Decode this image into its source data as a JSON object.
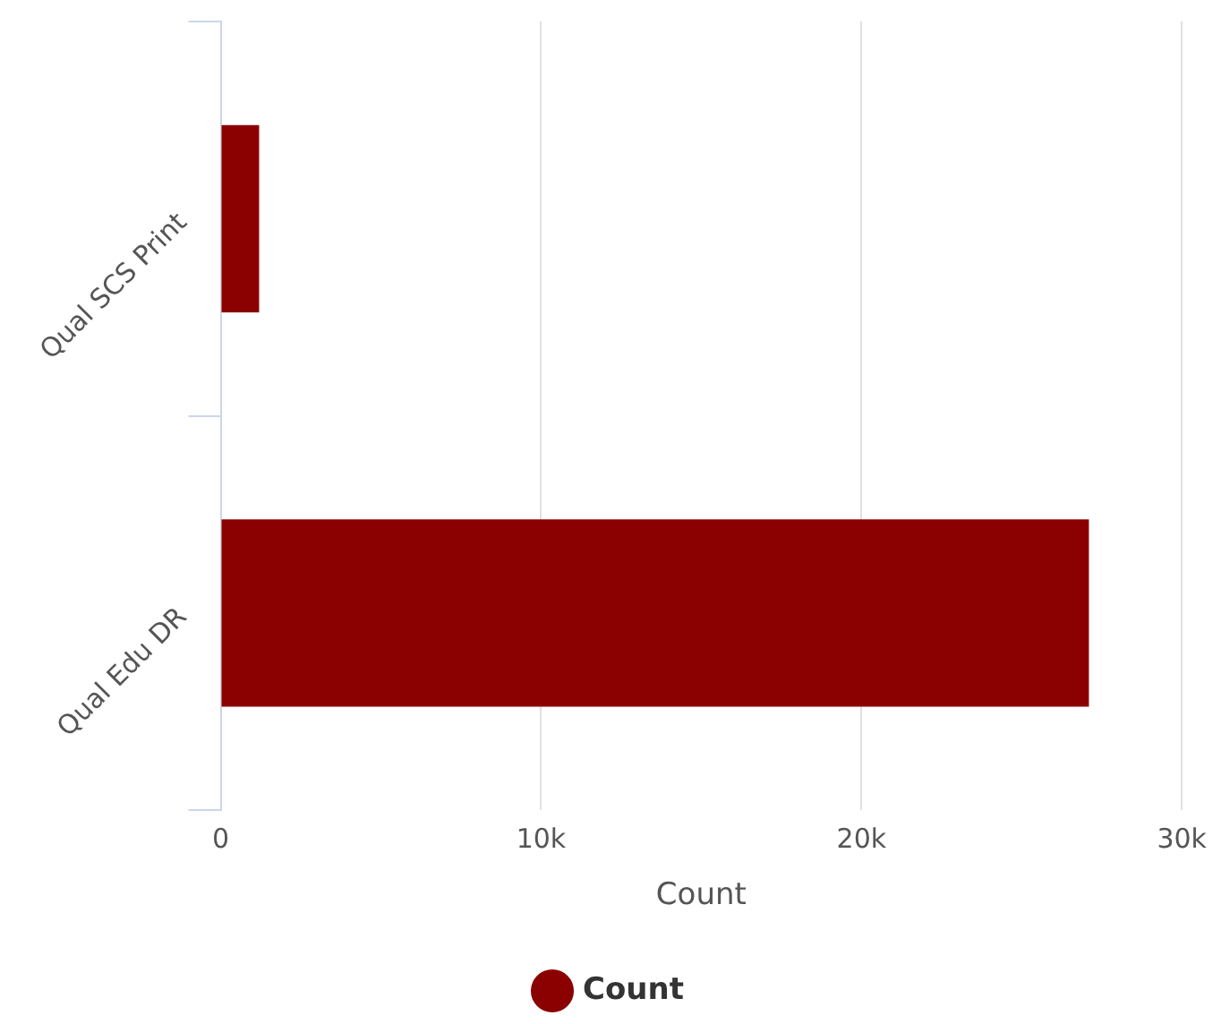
{
  "chart_data": {
    "type": "bar",
    "orientation": "horizontal",
    "categories": [
      "Qual SCS Print",
      "Qual Edu DR"
    ],
    "series": [
      {
        "name": "Count",
        "color": "#8b0000",
        "values": [
          1200,
          27100
        ]
      }
    ],
    "xlabel": "Count",
    "xlim": [
      0,
      30000
    ],
    "xticks": [
      0,
      {
        "value": 10000,
        "label": "10k"
      },
      {
        "value": 20000,
        "label": "20k"
      },
      {
        "value": 30000,
        "label": "30k"
      }
    ],
    "grid": "x",
    "legend": "bottom"
  }
}
